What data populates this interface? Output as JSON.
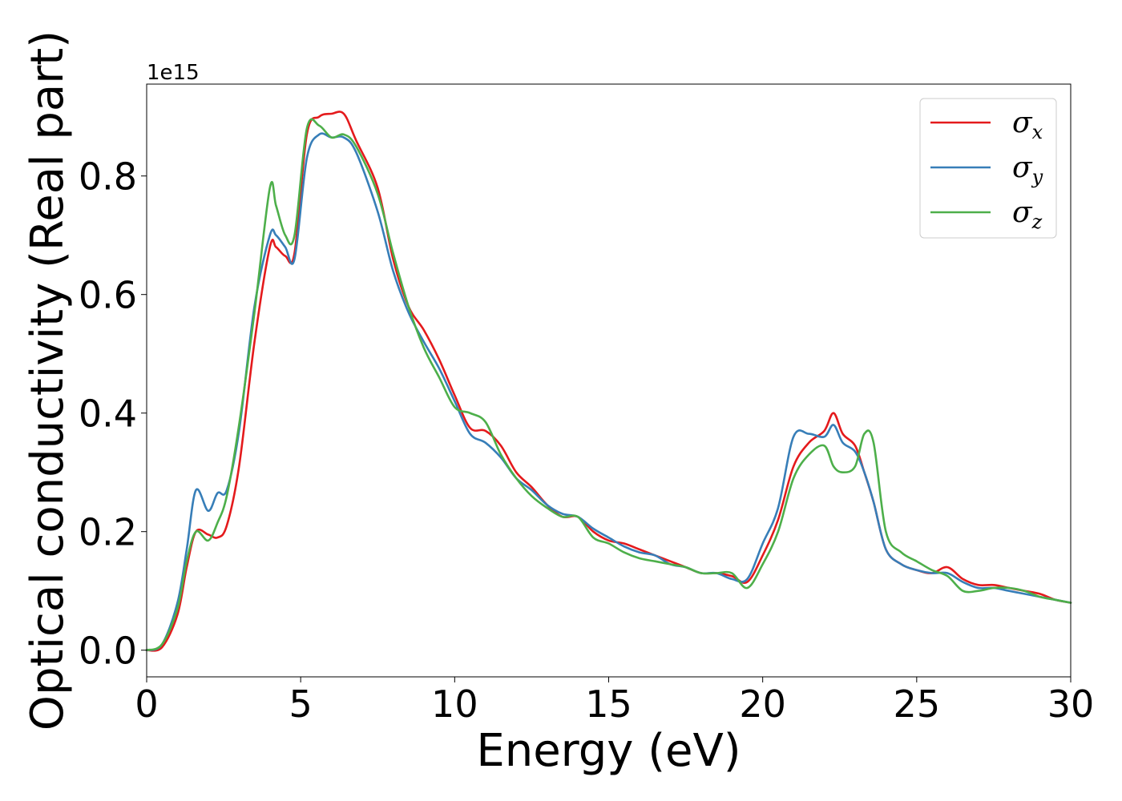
{
  "chart_data": {
    "type": "line",
    "title": "",
    "xlabel": "Energy (eV)",
    "ylabel": "Optical conductivity (Real part)",
    "y_offset_text": "1e15",
    "xlim": [
      0,
      30
    ],
    "ylim": [
      -0.045,
      0.955
    ],
    "xticks": [
      0,
      5,
      10,
      15,
      20,
      25,
      30
    ],
    "xtick_labels": [
      "0",
      "5",
      "10",
      "15",
      "20",
      "25",
      "30"
    ],
    "yticks": [
      0.0,
      0.2,
      0.4,
      0.6,
      0.8
    ],
    "ytick_labels": [
      "0.0",
      "0.2",
      "0.4",
      "0.6",
      "0.8"
    ],
    "grid": false,
    "legend_position": "top-right",
    "x": [
      0,
      0.5,
      1,
      1.3,
      1.6,
      2,
      2.3,
      2.6,
      3,
      3.5,
      4,
      4.2,
      4.5,
      4.8,
      5.2,
      5.6,
      6,
      6.4,
      6.8,
      7.5,
      8,
      8.5,
      9,
      9.5,
      10,
      10.5,
      11,
      11.5,
      12,
      12.5,
      13,
      13.5,
      14,
      14.5,
      15,
      15.5,
      16,
      16.5,
      17,
      17.5,
      18,
      18.5,
      19,
      19.5,
      20,
      20.5,
      21,
      21.5,
      22,
      22.3,
      22.6,
      23,
      23.3,
      23.6,
      24,
      24.5,
      25,
      25.5,
      26,
      26.5,
      27,
      27.5,
      28,
      28.5,
      29,
      29.5,
      30
    ],
    "series": [
      {
        "name": "x",
        "color": "#e41a1c",
        "values": [
          0.0,
          0.005,
          0.06,
          0.14,
          0.2,
          0.195,
          0.19,
          0.21,
          0.31,
          0.52,
          0.68,
          0.68,
          0.665,
          0.67,
          0.87,
          0.9,
          0.905,
          0.905,
          0.86,
          0.78,
          0.66,
          0.58,
          0.54,
          0.49,
          0.43,
          0.375,
          0.37,
          0.345,
          0.3,
          0.275,
          0.245,
          0.225,
          0.225,
          0.2,
          0.185,
          0.18,
          0.17,
          0.16,
          0.15,
          0.14,
          0.13,
          0.13,
          0.125,
          0.115,
          0.16,
          0.22,
          0.31,
          0.35,
          0.37,
          0.4,
          0.365,
          0.345,
          0.3,
          0.25,
          0.17,
          0.145,
          0.135,
          0.13,
          0.14,
          0.12,
          0.11,
          0.11,
          0.105,
          0.1,
          0.095,
          0.085,
          0.08
        ]
      },
      {
        "name": "y",
        "color": "#377eb8",
        "values": [
          0.0,
          0.01,
          0.08,
          0.17,
          0.27,
          0.235,
          0.265,
          0.27,
          0.37,
          0.58,
          0.7,
          0.7,
          0.68,
          0.66,
          0.83,
          0.87,
          0.865,
          0.865,
          0.84,
          0.74,
          0.64,
          0.57,
          0.52,
          0.475,
          0.42,
          0.365,
          0.35,
          0.325,
          0.29,
          0.27,
          0.245,
          0.23,
          0.225,
          0.205,
          0.19,
          0.175,
          0.165,
          0.16,
          0.145,
          0.14,
          0.13,
          0.13,
          0.12,
          0.12,
          0.18,
          0.24,
          0.36,
          0.365,
          0.36,
          0.38,
          0.35,
          0.335,
          0.3,
          0.25,
          0.17,
          0.145,
          0.135,
          0.13,
          0.13,
          0.115,
          0.105,
          0.105,
          0.1,
          0.095,
          0.09,
          0.085,
          0.08
        ]
      },
      {
        "name": "z",
        "color": "#4daf4a",
        "values": [
          0.0,
          0.01,
          0.07,
          0.15,
          0.2,
          0.185,
          0.215,
          0.26,
          0.38,
          0.57,
          0.78,
          0.75,
          0.7,
          0.7,
          0.88,
          0.885,
          0.865,
          0.87,
          0.85,
          0.77,
          0.67,
          0.58,
          0.51,
          0.46,
          0.41,
          0.4,
          0.385,
          0.33,
          0.29,
          0.26,
          0.24,
          0.225,
          0.225,
          0.19,
          0.18,
          0.165,
          0.155,
          0.15,
          0.145,
          0.14,
          0.13,
          0.13,
          0.13,
          0.105,
          0.145,
          0.2,
          0.29,
          0.33,
          0.345,
          0.31,
          0.3,
          0.31,
          0.365,
          0.35,
          0.2,
          0.165,
          0.15,
          0.135,
          0.125,
          0.1,
          0.1,
          0.105,
          0.105,
          0.1,
          0.09,
          0.085,
          0.08
        ]
      }
    ]
  }
}
